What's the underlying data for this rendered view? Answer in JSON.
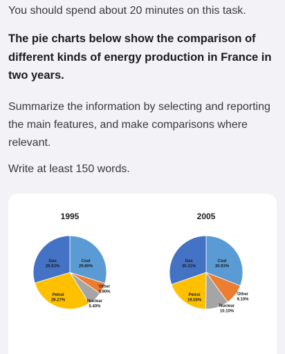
{
  "task": {
    "instruction": "You should spend about 20 minutes on this task.",
    "heading": "The pie charts below show the comparison of different kinds of energy production in France in two years.",
    "summary": "Summarize the information by selecting and reporting the main features, and make comparisons where relevant.",
    "word_count": "Write at least 150 words."
  },
  "chart_data": [
    {
      "type": "pie",
      "title": "1995",
      "slices": [
        {
          "label": "Coal",
          "value": 29.8,
          "display": "29.80%",
          "color": "#5b9bd5"
        },
        {
          "label": "Other",
          "value": 4.9,
          "display": "4.90%",
          "color": "#ed7d31"
        },
        {
          "label": "Nuclear",
          "value": 6.4,
          "display": "6.40%",
          "color": "#a5a5a5"
        },
        {
          "label": "Petrol",
          "value": 29.27,
          "display": "29.27%",
          "color": "#ffc000"
        },
        {
          "label": "Gas",
          "value": 29.63,
          "display": "29.63%",
          "color": "#4472c4"
        }
      ]
    },
    {
      "type": "pie",
      "title": "2005",
      "slices": [
        {
          "label": "Coal",
          "value": 30.93,
          "display": "30.93%",
          "color": "#5b9bd5"
        },
        {
          "label": "Other",
          "value": 9.1,
          "display": "9.10%",
          "color": "#ed7d31"
        },
        {
          "label": "Nuclear",
          "value": 10.1,
          "display": "10.10%",
          "color": "#a5a5a5"
        },
        {
          "label": "Petrol",
          "value": 19.55,
          "display": "19.55%",
          "color": "#ffc000"
        },
        {
          "label": "Gas",
          "value": 30.31,
          "display": "30.31%",
          "color": "#4472c4"
        }
      ]
    }
  ]
}
